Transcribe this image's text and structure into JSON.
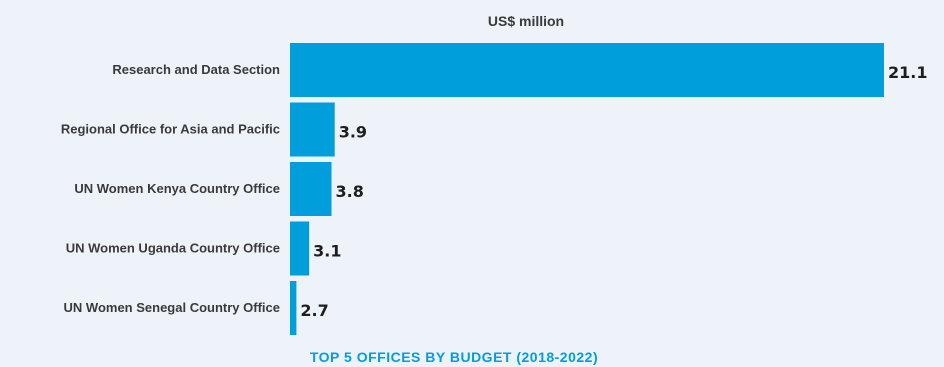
{
  "chart_data": {
    "type": "bar",
    "orientation": "horizontal",
    "unit_label": "US$ million",
    "caption": "TOP 5 OFFICES BY BUDGET (2018-2022)",
    "categories": [
      "Research and Data Section",
      "Regional Office for Asia and Pacific",
      "UN Women Kenya Country Office",
      "UN Women Uganda Country Office",
      "UN Women Senegal Country Office"
    ],
    "values": [
      21.1,
      3.9,
      3.8,
      3.1,
      2.7
    ],
    "value_labels": [
      "21.1",
      "3.9",
      "3.8",
      "3.1",
      "2.7"
    ],
    "axis_baseline": 2.5,
    "xlim_max": 21.1,
    "grid": false,
    "legend": "none",
    "colors": {
      "bar": "#009edb",
      "caption": "#009edb",
      "background": "#eef3f9"
    }
  }
}
